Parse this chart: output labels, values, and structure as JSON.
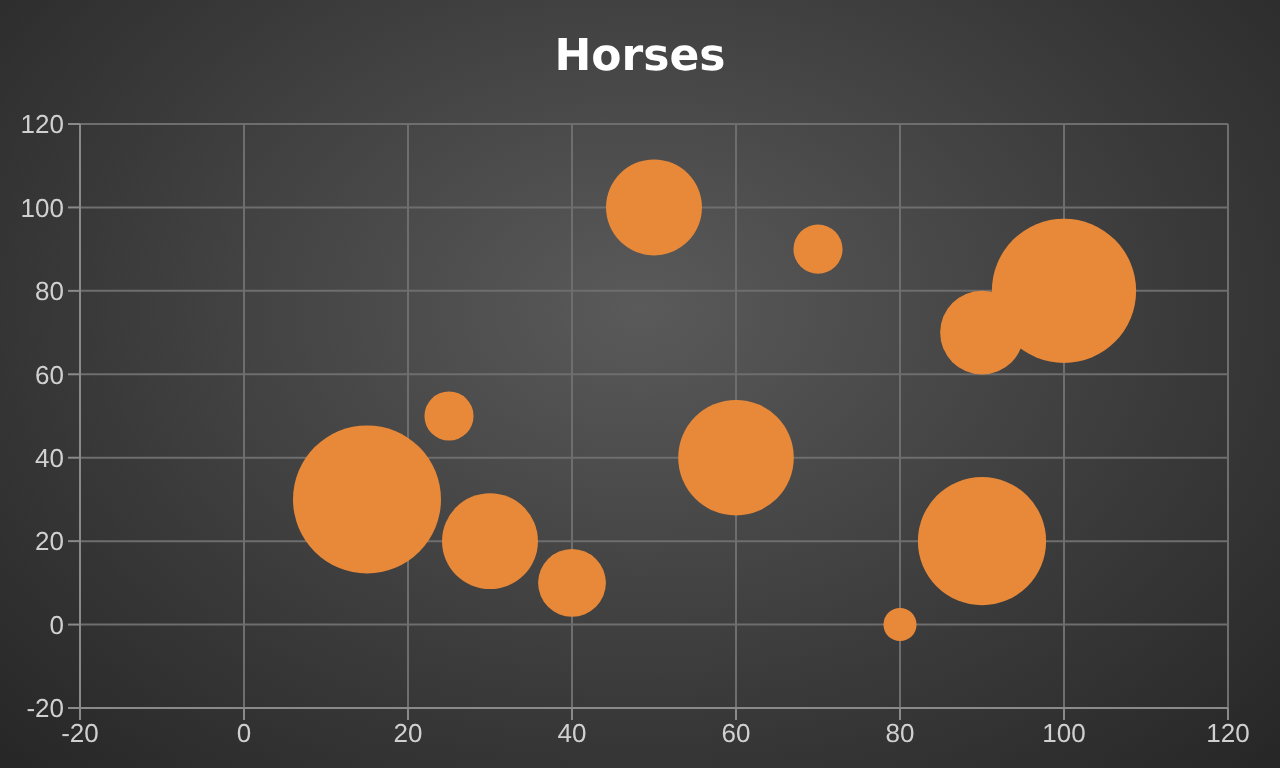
{
  "chart_data": {
    "type": "bubble",
    "title": "Horses",
    "x": [
      15,
      25,
      30,
      40,
      50,
      60,
      70,
      80,
      90,
      90,
      100
    ],
    "values": [
      30,
      50,
      20,
      10,
      100,
      40,
      90,
      0,
      70,
      20,
      80
    ],
    "sizes": [
      1,
      0.11,
      0.42,
      0.21,
      0.42,
      0.61,
      0.11,
      0.05,
      0.32,
      0.75,
      0.95
    ],
    "color": "#e8893a",
    "xlim": [
      -20,
      120
    ],
    "xticks": [
      -20,
      0,
      20,
      40,
      60,
      80,
      100,
      120
    ],
    "ylim": [
      -20,
      120
    ],
    "yticks": [
      -20,
      0,
      20,
      40,
      60,
      80,
      100,
      120
    ],
    "grid": true,
    "legend": false
  }
}
